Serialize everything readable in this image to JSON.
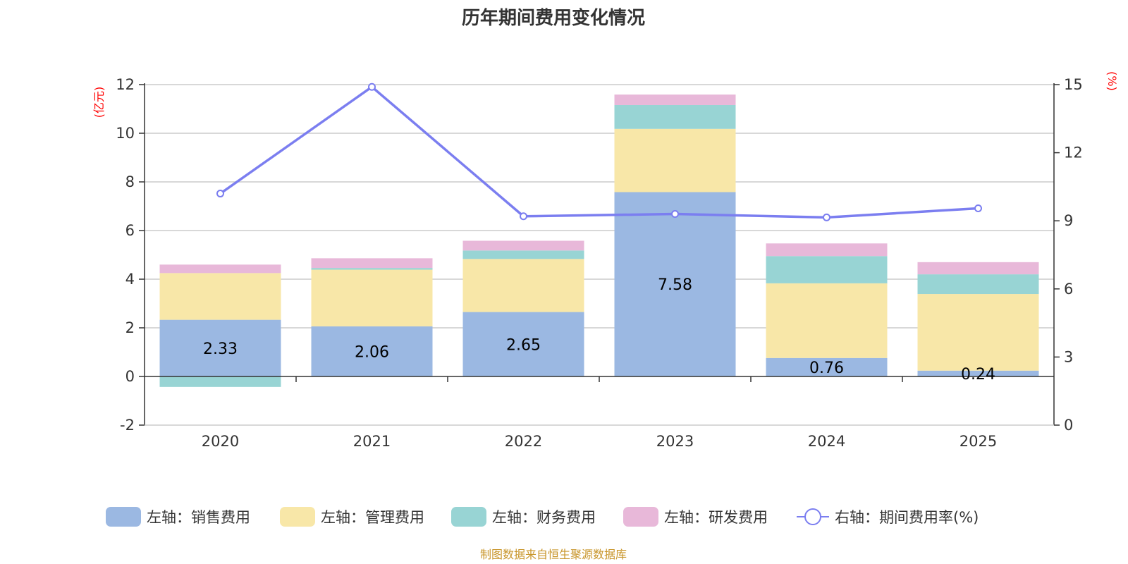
{
  "chart_data": {
    "type": "bar",
    "title": "历年期间费用变化情况",
    "categories": [
      "2020",
      "2021",
      "2022",
      "2023",
      "2024",
      "2025"
    ],
    "series": [
      {
        "name": "左轴：销售费用",
        "axis": "left",
        "type": "bar",
        "color": "#9bb8e2",
        "values": [
          2.33,
          2.06,
          2.65,
          7.58,
          0.76,
          0.24
        ],
        "labels": [
          "2.33",
          "2.06",
          "2.65",
          "7.58",
          "0.76",
          "0.24"
        ]
      },
      {
        "name": "左轴：管理费用",
        "axis": "left",
        "type": "bar",
        "color": "#f8e7a8",
        "values": [
          1.92,
          2.33,
          2.18,
          2.6,
          3.07,
          3.15
        ]
      },
      {
        "name": "左轴：财务费用",
        "axis": "left",
        "type": "bar",
        "color": "#98d4d4",
        "values": [
          -0.43,
          0.07,
          0.35,
          0.98,
          1.12,
          0.81
        ]
      },
      {
        "name": "左轴：研发费用",
        "axis": "left",
        "type": "bar",
        "color": "#e8b8d9",
        "values": [
          0.35,
          0.4,
          0.4,
          0.43,
          0.52,
          0.5
        ]
      },
      {
        "name": "右轴：期间费用率(%)",
        "axis": "right",
        "type": "line",
        "color": "#7b7ef0",
        "values": [
          10.2,
          14.9,
          9.2,
          9.3,
          9.15,
          9.55
        ]
      }
    ],
    "left_axis": {
      "unit": "(亿元)",
      "min": -2,
      "max": 12,
      "ticks": [
        -2,
        0,
        2,
        4,
        6,
        8,
        10,
        12
      ]
    },
    "right_axis": {
      "unit": "(%)",
      "min": 0,
      "max": 15,
      "ticks": [
        0,
        3,
        6,
        9,
        12,
        15
      ]
    },
    "grid": true,
    "legend_position": "bottom",
    "source": "制图数据来自恒生聚源数据库"
  }
}
